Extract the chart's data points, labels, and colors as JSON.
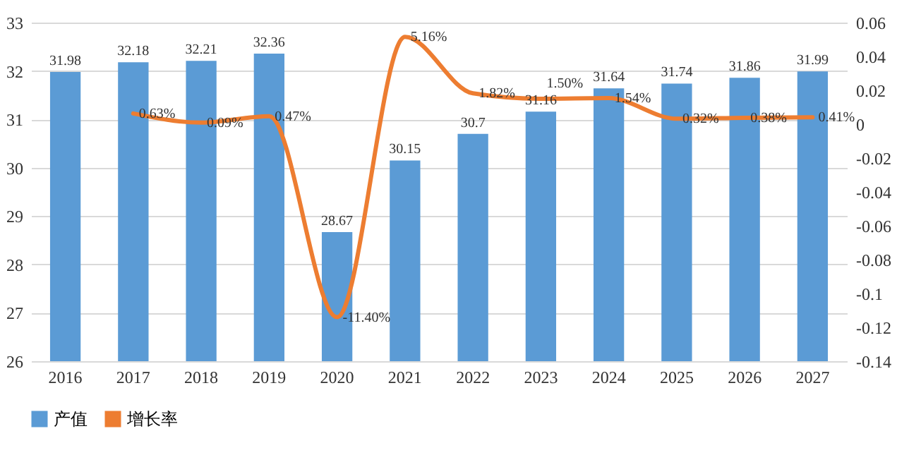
{
  "chart_data": {
    "type": "bar",
    "categories": [
      "2016",
      "2017",
      "2018",
      "2019",
      "2020",
      "2021",
      "2022",
      "2023",
      "2024",
      "2025",
      "2026",
      "2027"
    ],
    "series": [
      {
        "name": "产值",
        "type": "bar",
        "color": "#5b9bd5",
        "values": [
          31.98,
          32.18,
          32.21,
          32.36,
          28.67,
          30.15,
          30.7,
          31.16,
          31.64,
          31.74,
          31.86,
          31.99
        ],
        "value_labels": [
          "31.98",
          "32.18",
          "32.21",
          "32.36",
          "28.67",
          "30.15",
          "30.7",
          "31.16",
          "31.64",
          "31.74",
          "31.86",
          "31.99"
        ]
      },
      {
        "name": "增长率",
        "type": "line",
        "axis": "y2",
        "color": "#ed7d31",
        "values": [
          null,
          0.0063,
          0.0009,
          0.0047,
          -0.114,
          0.0516,
          0.0182,
          0.015,
          0.0154,
          0.0032,
          0.0038,
          0.0041
        ],
        "value_labels": [
          null,
          "0.63%",
          "0.09%",
          "0.47%",
          "-11.40%",
          "5.16%",
          "1.82%",
          "1.50%",
          "1.54%",
          "0.32%",
          "0.38%",
          "0.41%"
        ]
      }
    ],
    "ylim": [
      26,
      33
    ],
    "yticks": [
      26,
      27,
      28,
      29,
      30,
      31,
      32,
      33
    ],
    "y2lim": [
      -0.14,
      0.06
    ],
    "y2ticks": [
      -0.14,
      -0.12,
      -0.1,
      -0.08,
      -0.06,
      -0.04,
      -0.02,
      0,
      0.02,
      0.04,
      0.06
    ],
    "grid": "y",
    "legend": "bottom"
  }
}
